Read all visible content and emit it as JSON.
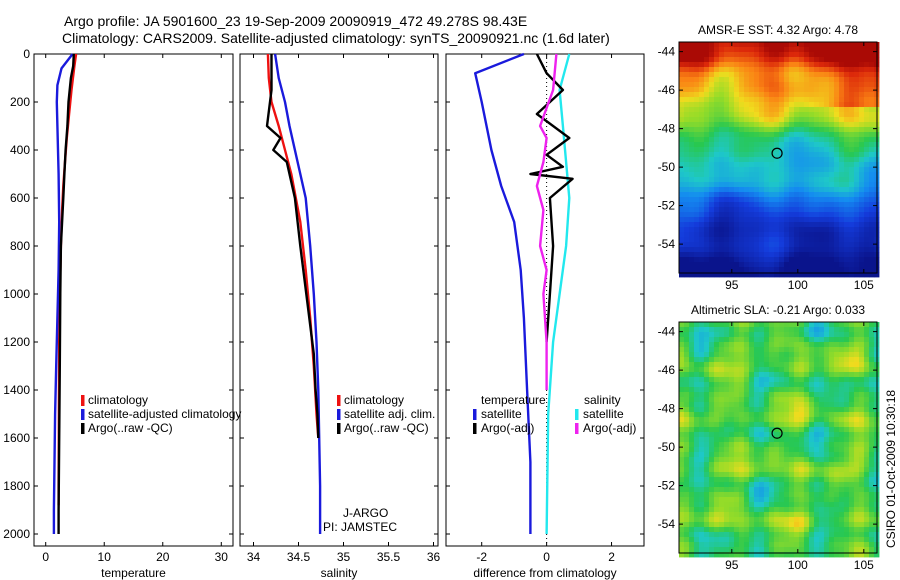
{
  "header": {
    "title_line1": "Argo profile: JA 5901600_23 19-Sep-2009 20090919_472 49.278S 98.43E",
    "title_line2": "Climatology: CARS2009. Satellite-adjusted climatology: synTS_20090921.nc (1.6d later)"
  },
  "colors": {
    "climatology": "#ee1111",
    "satellite": "#1a1adc",
    "argo": "#000000",
    "sat_salinity": "#22e8ee",
    "argo_adj_salinity": "#ee22ee"
  },
  "chart_data": [
    {
      "type": "line",
      "name": "temperature-profile",
      "xlabel": "temperature",
      "ylabel": "",
      "xlim": [
        -2,
        32
      ],
      "ylim": [
        2050,
        0
      ],
      "xticks": [
        0,
        10,
        20,
        30
      ],
      "xtick_labels": [
        "0",
        "10",
        "20",
        "30"
      ],
      "yticks": [
        0,
        200,
        400,
        600,
        800,
        1000,
        1200,
        1400,
        1600,
        1800,
        2000
      ],
      "ytick_labels": [
        "0",
        "200",
        "400",
        "600",
        "800",
        "1000",
        "1200",
        "1400",
        "1600",
        "1800",
        "2000"
      ],
      "legend": [
        "climatology",
        "satellite-adjusted climatology",
        "Argo(..raw -QC)"
      ],
      "series": [
        {
          "name": "climatology",
          "color": "#ee1111",
          "x": [
            5.2,
            4.9,
            4.4,
            4.0,
            3.6,
            3.3,
            3.0,
            2.8,
            2.6,
            2.4,
            2.3,
            2.25,
            2.2,
            2.2
          ],
          "y": [
            0,
            50,
            150,
            250,
            350,
            450,
            550,
            650,
            800,
            1000,
            1200,
            1500,
            1800,
            1880
          ]
        },
        {
          "name": "satellite-adjusted climatology",
          "color": "#1a1adc",
          "x": [
            4.6,
            2.7,
            2.0,
            1.9,
            2.0,
            2.2,
            2.3,
            2.2,
            2.0,
            1.8,
            1.6,
            1.5,
            1.4,
            1.4
          ],
          "y": [
            0,
            60,
            130,
            200,
            300,
            500,
            700,
            900,
            1100,
            1300,
            1500,
            1700,
            1900,
            2000
          ]
        },
        {
          "name": "Argo(..raw -QC)",
          "color": "#000000",
          "x": [
            4.8,
            4.7,
            4.3,
            3.9,
            3.7,
            3.4,
            3.2,
            3.0,
            2.8,
            2.6,
            2.5,
            2.4,
            2.3,
            2.2,
            2.2
          ],
          "y": [
            0,
            50,
            100,
            200,
            300,
            400,
            500,
            600,
            700,
            800,
            1000,
            1300,
            1600,
            1900,
            2000
          ]
        }
      ]
    },
    {
      "type": "line",
      "name": "salinity-profile",
      "xlabel": "salinity",
      "ylabel": "",
      "xlim": [
        33.85,
        36.05
      ],
      "ylim": [
        2050,
        0
      ],
      "xticks": [
        34,
        34.5,
        35,
        35.5,
        36
      ],
      "xtick_labels": [
        "34",
        "34.5",
        "35",
        "35.5",
        "36"
      ],
      "legend": [
        "climatology",
        "satellite adj. clim.",
        "Argo(..raw -QC)"
      ],
      "annotations": [
        "J-ARGO",
        "PI: JAMSTEC"
      ],
      "series": [
        {
          "name": "climatology",
          "color": "#ee1111",
          "x": [
            34.16,
            34.17,
            34.2,
            34.28,
            34.35,
            34.42,
            34.47,
            34.52,
            34.58,
            34.63,
            34.67,
            34.7,
            34.72
          ],
          "y": [
            0,
            100,
            200,
            300,
            400,
            500,
            600,
            700,
            900,
            1100,
            1300,
            1500,
            1600
          ]
        },
        {
          "name": "satellite adj. clim.",
          "color": "#1a1adc",
          "x": [
            34.24,
            34.28,
            34.35,
            34.4,
            34.46,
            34.52,
            34.58,
            34.63,
            34.67,
            34.7,
            34.72,
            34.73,
            34.74,
            34.74
          ],
          "y": [
            0,
            100,
            200,
            300,
            400,
            500,
            600,
            800,
            1000,
            1200,
            1400,
            1600,
            1800,
            2000
          ]
        },
        {
          "name": "Argo(..raw -QC)",
          "color": "#000000",
          "x": [
            34.2,
            34.2,
            34.15,
            34.3,
            34.22,
            34.37,
            34.4,
            34.46,
            34.52,
            34.57,
            34.62,
            34.67,
            34.69,
            34.71,
            34.72
          ],
          "y": [
            0,
            150,
            300,
            350,
            400,
            450,
            500,
            600,
            800,
            950,
            1100,
            1250,
            1400,
            1500,
            1600
          ]
        }
      ]
    },
    {
      "type": "line",
      "name": "difference-profile",
      "xlabel": "difference from climatology",
      "ylabel": "",
      "xlim": [
        -3.1,
        3.0
      ],
      "ylim": [
        2050,
        0
      ],
      "xticks": [
        -2,
        0,
        2
      ],
      "xtick_labels": [
        "-2",
        "0",
        "2"
      ],
      "legend_groups": [
        {
          "title": "temperature",
          "entries": [
            "satellite",
            "Argo(-adj)"
          ]
        },
        {
          "title": "salinity",
          "entries": [
            "satellite",
            "Argo(-adj)"
          ]
        }
      ],
      "series": [
        {
          "name": "temperature satellite",
          "color": "#1a1adc",
          "x": [
            -0.7,
            -2.2,
            -2.0,
            -1.7,
            -1.4,
            -1.0,
            -0.8,
            -0.7,
            -0.6,
            -0.5,
            -0.5
          ],
          "y": [
            0,
            80,
            200,
            400,
            550,
            700,
            900,
            1100,
            1400,
            1700,
            2000
          ]
        },
        {
          "name": "salinity satellite",
          "color": "#22e8ee",
          "x": [
            0.7,
            0.4,
            0.5,
            0.6,
            0.7,
            0.6,
            0.4,
            0.2,
            0.05,
            0.0
          ],
          "y": [
            0,
            150,
            300,
            450,
            600,
            800,
            1000,
            1200,
            1500,
            2000
          ]
        },
        {
          "name": "temperature Argo(-adj)",
          "color": "#000000",
          "x": [
            -0.3,
            0.0,
            0.5,
            -0.3,
            0.7,
            0.0,
            0.5,
            -0.5,
            0.8,
            0.1,
            0.2,
            0.1,
            0.0
          ],
          "y": [
            0,
            80,
            150,
            250,
            350,
            420,
            470,
            500,
            520,
            600,
            800,
            1000,
            1200
          ]
        },
        {
          "name": "salinity Argo(-adj)",
          "color": "#ee22ee",
          "x": [
            0.3,
            0.2,
            -0.2,
            0.0,
            -0.1,
            -0.3,
            -0.1,
            -0.2,
            0.0,
            -0.1,
            0.0,
            0.0
          ],
          "y": [
            0,
            150,
            300,
            350,
            450,
            550,
            650,
            800,
            900,
            1000,
            1200,
            1400
          ]
        }
      ]
    },
    {
      "type": "heatmap",
      "name": "sst-map",
      "title": "AMSR-E SST: 4.32 Argo: 4.78",
      "xlim": [
        91,
        106
      ],
      "ylim": [
        -55.5,
        -43.5
      ],
      "xticks": [
        95,
        100,
        105
      ],
      "xtick_labels": [
        "95",
        "100",
        "105"
      ],
      "yticks": [
        -44,
        -46,
        -48,
        -50,
        -52,
        -54
      ],
      "ytick_labels": [
        "-44",
        "-46",
        "-48",
        "-50",
        "-52",
        "-54"
      ],
      "marker": {
        "lon": 98.43,
        "lat": -49.278
      }
    },
    {
      "type": "heatmap",
      "name": "sla-map",
      "title": "Altimetric SLA: -0.21 Argo: 0.033",
      "xlim": [
        91,
        106
      ],
      "ylim": [
        -55.5,
        -43.5
      ],
      "xticks": [
        95,
        100,
        105
      ],
      "xtick_labels": [
        "95",
        "100",
        "105"
      ],
      "yticks": [
        -44,
        -46,
        -48,
        -50,
        -52,
        -54
      ],
      "ytick_labels": [
        "-44",
        "-46",
        "-48",
        "-50",
        "-52",
        "-54"
      ],
      "marker": {
        "lon": 98.43,
        "lat": -49.278
      }
    }
  ],
  "footer": {
    "credit": "CSIRO 01-Oct-2009 10:30:18"
  }
}
